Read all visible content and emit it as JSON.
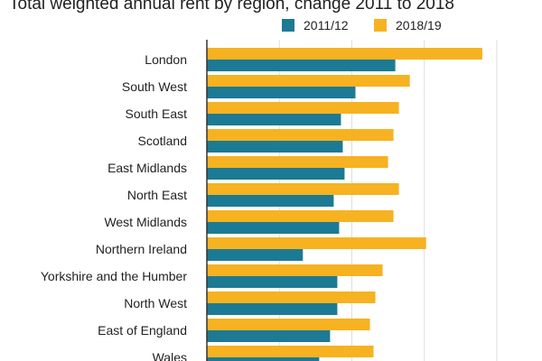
{
  "chart_data": {
    "type": "bar",
    "orientation": "horizontal",
    "title": "Total weighted annual rent by region, change 2011 to 2018",
    "categories": [
      "London",
      "South West",
      "South East",
      "Scotland",
      "East Midlands",
      "North East",
      "West Midlands",
      "Northern Ireland",
      "Yorkshire and the Humber",
      "North West",
      "East of England",
      "Wales"
    ],
    "series": [
      {
        "name": "2011/12",
        "color": "#1c7a94",
        "values": [
          52,
          41,
          37,
          37.5,
          38,
          35,
          36.5,
          26.5,
          36,
          36,
          34,
          31
        ]
      },
      {
        "name": "2018/19",
        "color": "#f6b221",
        "values": [
          76,
          56,
          53,
          51.5,
          50,
          53,
          51.5,
          60.5,
          48.5,
          46.5,
          45,
          46
        ]
      }
    ],
    "xlim": [
      0,
      85
    ],
    "grid": true,
    "legend_position": "top-right"
  }
}
